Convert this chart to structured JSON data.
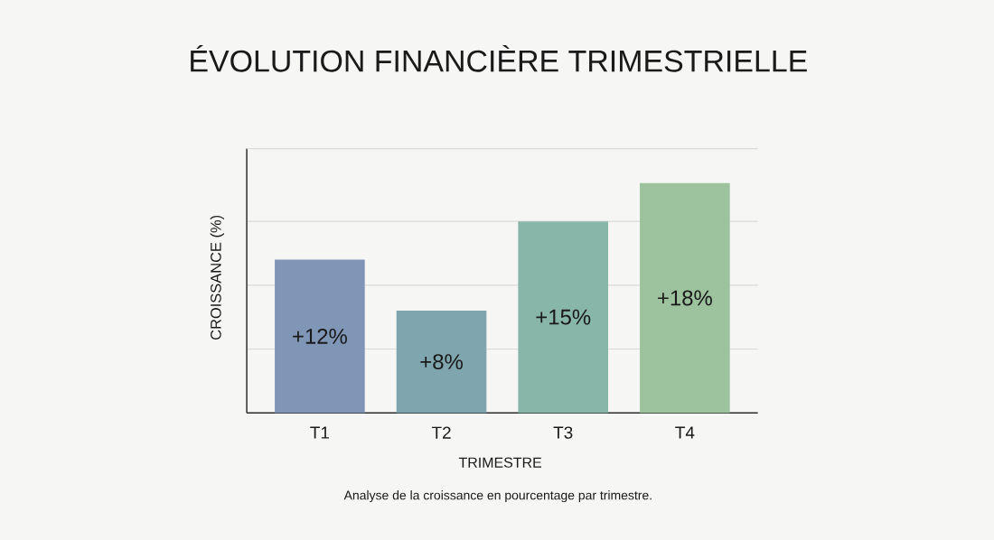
{
  "chart_data": {
    "type": "bar",
    "title": "ÉVOLUTION FINANCIÈRE TRIMESTRIELLE",
    "xlabel": "TRIMESTRE",
    "ylabel": "CROISSANCE (%)",
    "categories": [
      "T1",
      "T2",
      "T3",
      "T4"
    ],
    "values": [
      12,
      8,
      15,
      18
    ],
    "value_labels": [
      "+12%",
      "+8%",
      "+15%",
      "+18%"
    ],
    "colors": [
      "#8096b6",
      "#7fa6ae",
      "#88b6a8",
      "#9cc29e"
    ],
    "ylim": [
      0,
      20.7
    ],
    "yticks": [
      {
        "value": 5,
        "label": null
      },
      {
        "value": 10,
        "label": null
      },
      {
        "value": 15,
        "label": null
      }
    ],
    "grid": "y",
    "tick_labels": "x",
    "annotations": [
      "Analyse de la croissance en pourcentage par trimestre."
    ]
  }
}
